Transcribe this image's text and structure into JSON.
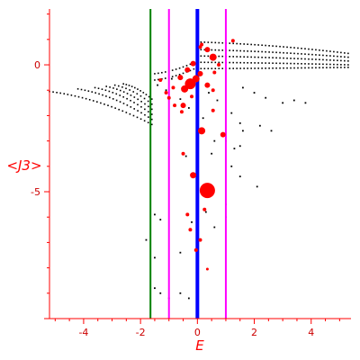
{
  "chart_data": {
    "type": "scatter",
    "title": "",
    "xlabel": "E",
    "ylabel": "<J3>",
    "xlim": [
      -5.2,
      5.4
    ],
    "ylim": [
      -10,
      2.2
    ],
    "xticks": [
      -4,
      -2,
      0,
      2,
      4
    ],
    "xtick_labels": [
      "-4",
      "-2",
      "0",
      "2",
      "4"
    ],
    "yticks": [
      0,
      -5
    ],
    "ytick_labels": [
      "0",
      "-5"
    ],
    "grid": false,
    "colors": {
      "axis": "#ff0000",
      "tick_label": "#cc0000",
      "black_points": "#000000",
      "red_points": "#ff0000",
      "green_line": "#008000",
      "magenta_line": "#ff00ff",
      "blue_line": "#0000ff"
    },
    "vertical_lines": [
      {
        "x": -1.65,
        "color": "#008000"
      },
      {
        "x": -1.0,
        "color": "#ff00ff"
      },
      {
        "x": 1.0,
        "color": "#ff00ff"
      },
      {
        "x": 0.0,
        "color": "#0000ff"
      }
    ],
    "series": [
      {
        "type": "curve_band",
        "color": "#000000",
        "curves": [
          {
            "x_start": -5.2,
            "x_end": -1.6,
            "y_start": -1.05,
            "y_end": -2.35
          },
          {
            "x_start": -4.2,
            "x_end": -1.6,
            "y_start": -0.95,
            "y_end": -2.15
          },
          {
            "x_start": -3.6,
            "x_end": -1.6,
            "y_start": -0.9,
            "y_end": -1.95
          },
          {
            "x_start": -3.2,
            "x_end": -1.6,
            "y_start": -0.85,
            "y_end": -1.75
          },
          {
            "x_start": -2.9,
            "x_end": -1.6,
            "y_start": -0.8,
            "y_end": -1.55
          },
          {
            "x_start": -2.6,
            "x_end": -1.6,
            "y_start": -0.75,
            "y_end": -1.35
          }
        ]
      },
      {
        "type": "curve_band",
        "color": "#000000",
        "curves": [
          {
            "x_start": 0.0,
            "x_end": 5.3,
            "y_start": 0.9,
            "y_end": 0.45
          },
          {
            "x_start": 0.0,
            "x_end": 5.3,
            "y_start": 0.6,
            "y_end": 0.3
          },
          {
            "x_start": 0.0,
            "x_end": 5.3,
            "y_start": 0.35,
            "y_end": 0.15
          },
          {
            "x_start": 0.0,
            "x_end": 5.3,
            "y_start": 0.1,
            "y_end": 0.0
          },
          {
            "x_start": 0.0,
            "x_end": 5.3,
            "y_start": -0.15,
            "y_end": -0.1
          },
          {
            "x_start": -1.5,
            "x_end": 0.0,
            "y_start": -0.6,
            "y_end": -0.1
          },
          {
            "x_start": -1.5,
            "x_end": 0.0,
            "y_start": -0.35,
            "y_end": 0.15
          }
        ]
      },
      {
        "type": "scatter",
        "color": "#000000",
        "points": [
          [
            1.6,
            -0.9
          ],
          [
            2.0,
            -1.1
          ],
          [
            2.4,
            -1.3
          ],
          [
            3.0,
            -1.5
          ],
          [
            3.4,
            -1.4
          ],
          [
            3.8,
            -1.5
          ],
          [
            1.2,
            -1.9
          ],
          [
            1.5,
            -2.3
          ],
          [
            2.2,
            -2.4
          ],
          [
            2.6,
            -2.6
          ],
          [
            1.0,
            -3.0
          ],
          [
            1.5,
            -3.2
          ],
          [
            1.2,
            -4.0
          ],
          [
            1.5,
            -4.4
          ],
          [
            2.1,
            -4.8
          ],
          [
            1.0,
            -5.5
          ],
          [
            1.0,
            -6.0
          ],
          [
            0.6,
            -6.4
          ],
          [
            -1.5,
            -5.9
          ],
          [
            -1.3,
            -6.1
          ],
          [
            -1.8,
            -6.9
          ],
          [
            -0.6,
            -7.4
          ],
          [
            -1.5,
            -7.6
          ],
          [
            -1.5,
            -8.8
          ],
          [
            -1.3,
            -9.0
          ],
          [
            -0.6,
            -9.0
          ],
          [
            -1.0,
            -9.2
          ],
          [
            -0.3,
            -9.2
          ],
          [
            -0.2,
            -6.2
          ],
          [
            0.3,
            -5.8
          ],
          [
            -0.4,
            -3.6
          ],
          [
            0.6,
            -3.0
          ],
          [
            1.3,
            -3.3
          ],
          [
            -1.4,
            -0.8
          ],
          [
            -1.1,
            -1.0
          ],
          [
            -0.9,
            -0.55
          ],
          [
            -0.6,
            -1.35
          ],
          [
            -0.3,
            -1.7
          ],
          [
            0.4,
            -1.1
          ],
          [
            0.7,
            -1.4
          ],
          [
            0.2,
            -2.1
          ],
          [
            0.5,
            -3.5
          ],
          [
            1.6,
            -2.6
          ]
        ]
      },
      {
        "type": "scatter",
        "color": "#ff0000",
        "points": [
          {
            "x": 0.35,
            "y": -4.95,
            "r": 8.5
          },
          {
            "x": -0.25,
            "y": -0.75,
            "r": 6
          },
          {
            "x": -0.05,
            "y": -0.55,
            "r": 4
          },
          {
            "x": 0.1,
            "y": -0.35,
            "r": 3
          },
          {
            "x": -0.45,
            "y": -0.95,
            "r": 4
          },
          {
            "x": 0.55,
            "y": 0.3,
            "r": 4
          },
          {
            "x": 0.35,
            "y": 0.6,
            "r": 3
          },
          {
            "x": 0.15,
            "y": 0.8,
            "r": 2
          },
          {
            "x": -0.15,
            "y": 0.05,
            "r": 3
          },
          {
            "x": -0.35,
            "y": -0.2,
            "r": 3
          },
          {
            "x": -0.6,
            "y": -0.5,
            "r": 3
          },
          {
            "x": -0.85,
            "y": -0.9,
            "r": 2
          },
          {
            "x": -1.0,
            "y": -1.3,
            "r": 2
          },
          {
            "x": -0.8,
            "y": -1.6,
            "r": 2
          },
          {
            "x": -0.5,
            "y": -1.6,
            "r": 3
          },
          {
            "x": -0.55,
            "y": -1.85,
            "r": 2
          },
          {
            "x": -0.2,
            "y": -1.25,
            "r": 2
          },
          {
            "x": 0.35,
            "y": -0.8,
            "r": 3
          },
          {
            "x": 0.55,
            "y": -1.0,
            "r": 2
          },
          {
            "x": 0.55,
            "y": -1.8,
            "r": 2
          },
          {
            "x": 0.15,
            "y": -2.6,
            "r": 4
          },
          {
            "x": 0.9,
            "y": -2.75,
            "r": 3
          },
          {
            "x": -0.15,
            "y": -4.35,
            "r": 3.5
          },
          {
            "x": 0.25,
            "y": -5.7,
            "r": 2
          },
          {
            "x": -0.5,
            "y": -3.5,
            "r": 2
          },
          {
            "x": -0.35,
            "y": -5.9,
            "r": 2
          },
          {
            "x": -0.25,
            "y": -6.5,
            "r": 2
          },
          {
            "x": 0.1,
            "y": -6.9,
            "r": 2
          },
          {
            "x": -0.05,
            "y": -7.3,
            "r": 2
          },
          {
            "x": 0.35,
            "y": -8.05,
            "r": 1.5
          },
          {
            "x": 1.25,
            "y": 0.95,
            "r": 2
          },
          {
            "x": 0.1,
            "y": 0.7,
            "r": 2
          },
          {
            "x": -1.3,
            "y": -0.6,
            "r": 2
          },
          {
            "x": -1.1,
            "y": -1.1,
            "r": 2
          },
          {
            "x": 0.6,
            "y": -0.3,
            "r": 2
          },
          {
            "x": 0.75,
            "y": 0.0,
            "r": 2
          }
        ]
      }
    ]
  }
}
